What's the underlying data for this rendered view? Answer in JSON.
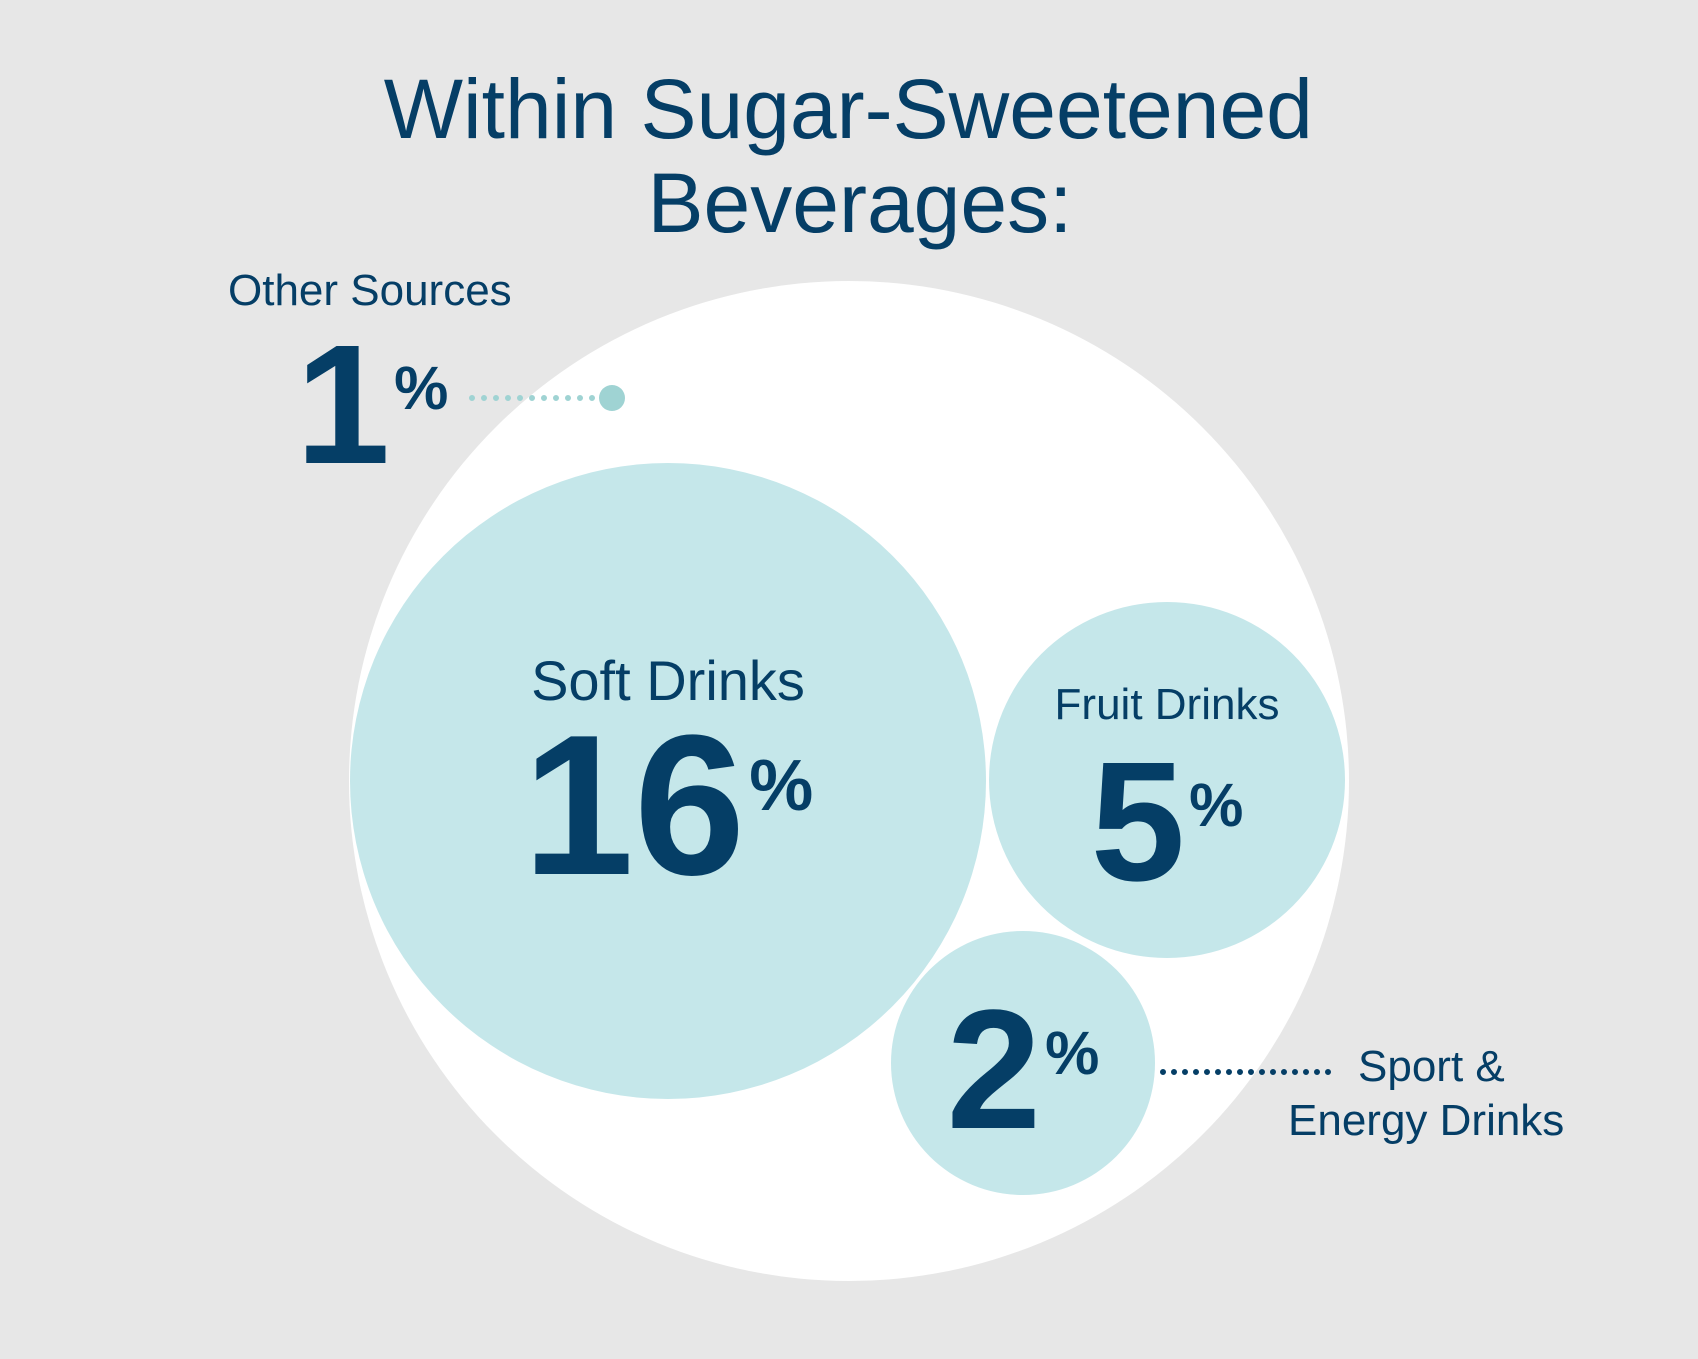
{
  "chart_data": {
    "type": "bubble",
    "title": "Within Sugar-Sweetened Beverages:",
    "title_lines": [
      "Within Sugar-Sweetened",
      "Beverages:"
    ],
    "unit": "%",
    "categories": [
      "Other Sources",
      "Soft Drinks",
      "Fruit Drinks",
      "Sport & Energy Drinks"
    ],
    "values": [
      1,
      16,
      5,
      2
    ],
    "label_lines": {
      "Sport & Energy Drinks": [
        "Sport &",
        "Energy Drinks"
      ]
    }
  },
  "colors": {
    "background": "#e7e7e7",
    "outer_circle": "#ffffff",
    "bubble_fill": "#c5e7ea",
    "other_marker": "#9fd3d3",
    "text": "#053e66",
    "sport_leader": "#053e66"
  }
}
